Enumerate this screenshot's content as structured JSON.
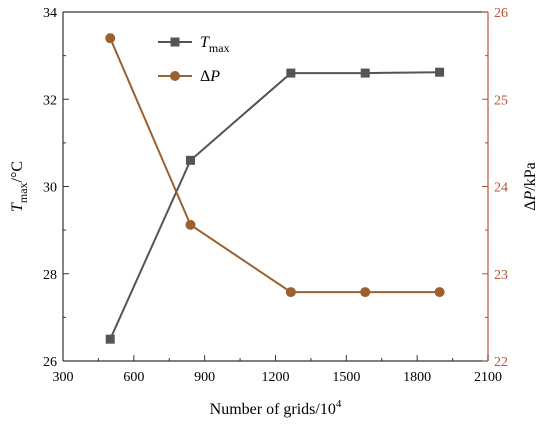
{
  "chart_data": {
    "type": "line",
    "xlabel": "Number of grids/10",
    "xlabel_sup": "4",
    "ylabel_left": "T",
    "ylabel_left_sub": "max",
    "ylabel_left_unit": "/°C",
    "ylabel_right_delta": "Δ",
    "ylabel_right_var": "P",
    "ylabel_right_unit": "/kPa",
    "xlim": [
      300,
      2100
    ],
    "xticks": [
      300,
      600,
      900,
      1200,
      1500,
      1800,
      2100
    ],
    "ylim_left": [
      26,
      34
    ],
    "yticks_left": [
      26,
      28,
      30,
      32,
      34
    ],
    "ylim_right": [
      22,
      26
    ],
    "yticks_right": [
      22,
      23,
      24,
      25,
      26
    ],
    "legend_position": "top-center",
    "grid": false,
    "series": [
      {
        "name": "T",
        "name_sub": "max",
        "axis": "left",
        "marker": "square",
        "color": "#555555",
        "x": [
          500,
          840,
          1265,
          1580,
          1895
        ],
        "y": [
          26.5,
          30.6,
          32.6,
          32.6,
          32.62
        ]
      },
      {
        "name": "ΔP",
        "name_prefix": "Δ",
        "name_var": "P",
        "axis": "right",
        "marker": "circle",
        "color": "#9b6030",
        "x": [
          500,
          840,
          1265,
          1580,
          1895
        ],
        "y": [
          25.7,
          23.56,
          22.79,
          22.79,
          22.79
        ]
      }
    ],
    "colors": {
      "left_axis": "#333333",
      "right_axis": "#b5533c",
      "frame": "#333333"
    }
  }
}
